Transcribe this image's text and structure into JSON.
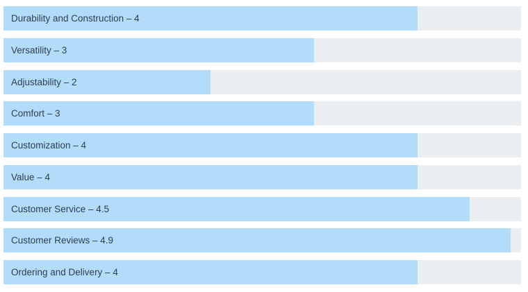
{
  "chart_data": {
    "type": "bar",
    "orientation": "horizontal",
    "max": 5,
    "categories": [
      "Durability and Construction",
      "Versatility",
      "Adjustability",
      "Comfort",
      "Customization",
      "Value",
      "Customer Service",
      "Customer Reviews",
      "Ordering and Delivery"
    ],
    "values": [
      4,
      3,
      2,
      3,
      4,
      4,
      4.5,
      4.9,
      4
    ],
    "labels": [
      "Durability and Construction – 4",
      "Versatility – 3",
      "Adjustability – 2",
      "Comfort – 3",
      "Customization – 4",
      "Value – 4",
      "Customer Service – 4.5",
      "Customer Reviews – 4.9",
      "Ordering and Delivery – 4"
    ],
    "colors": {
      "fill": "#b3dcfb",
      "track": "#eaeef1",
      "text": "#2d3e50"
    }
  }
}
